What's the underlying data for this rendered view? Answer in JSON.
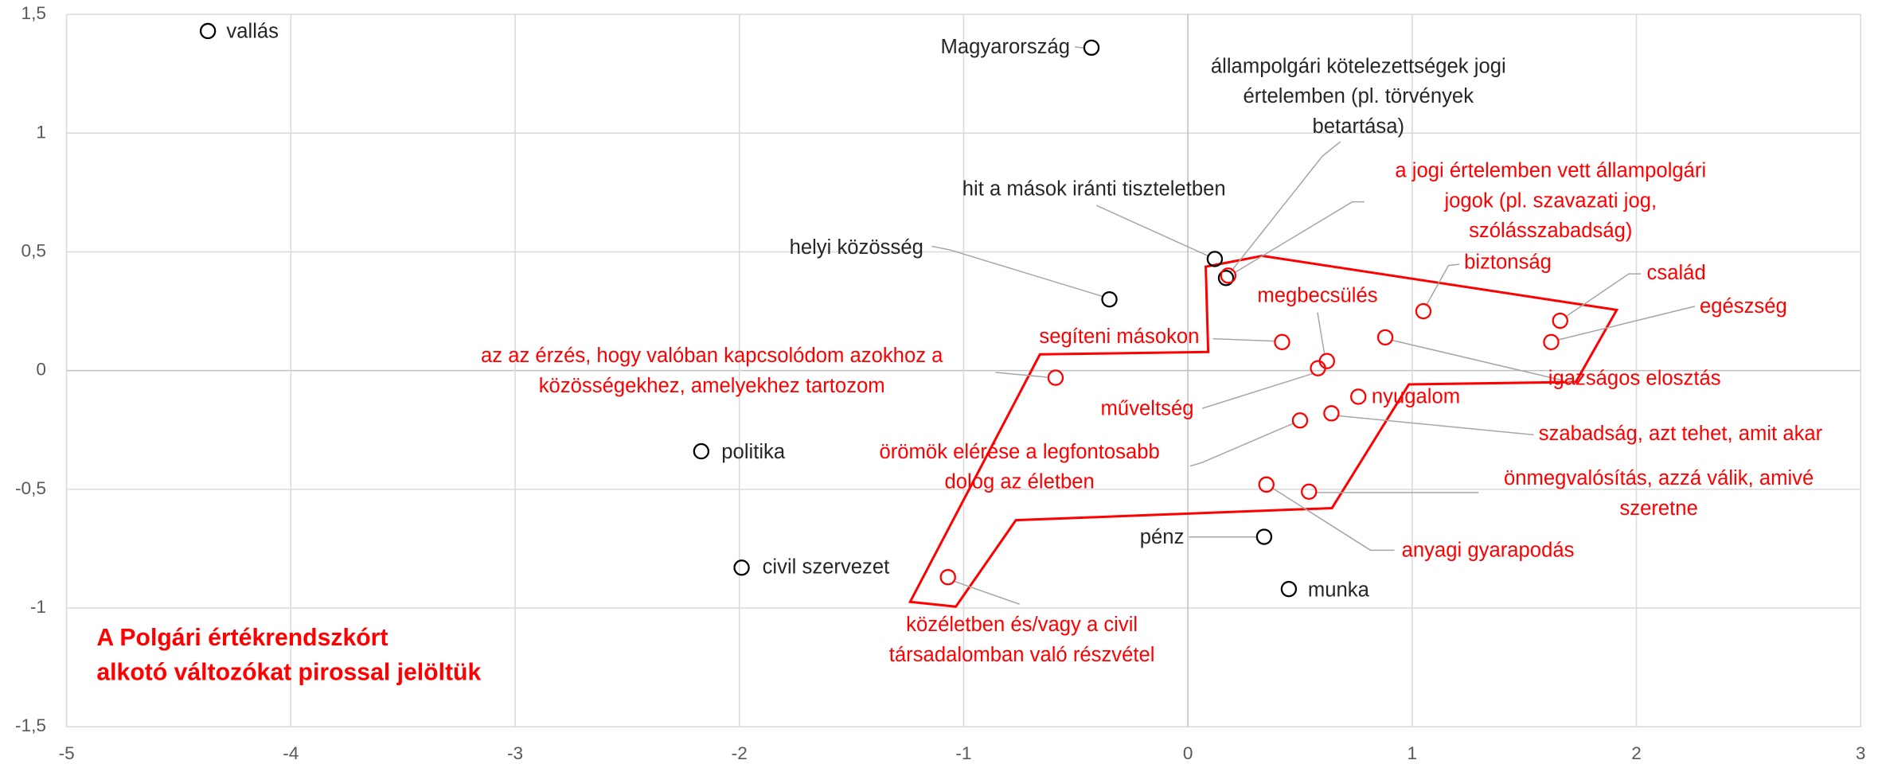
{
  "chart_data": {
    "type": "scatter",
    "xlim": [
      -5,
      3
    ],
    "xticks": [
      -5,
      -4,
      -3,
      -2,
      -1,
      0,
      1,
      2,
      3
    ],
    "ylim": [
      -1.5,
      1.5
    ],
    "yticks": [
      {
        "value": -1.5,
        "label": "-1,5"
      },
      -1,
      {
        "value": -0.5,
        "label": "-0,5"
      },
      0,
      {
        "value": 0.5,
        "label": "0,5"
      },
      1,
      {
        "value": 1.5,
        "label": "1,5"
      }
    ],
    "grid": true,
    "annotation": [
      "A Polgári értékrendszkórt",
      "alkotó változókat pirossal jelöltük"
    ],
    "annotation_color": "#ff0000",
    "points": [
      {
        "label": [
          "vallás"
        ],
        "x": -4.37,
        "y": 1.43,
        "color": "#000000"
      },
      {
        "label": [
          "Magyarország"
        ],
        "x": -0.43,
        "y": 1.36,
        "color": "#000000"
      },
      {
        "label": [
          "hit a mások iránti tiszteletben"
        ],
        "x": 0.12,
        "y": 0.47,
        "color": "#000000"
      },
      {
        "label": [
          "állampolgári kötelezettségek jogi",
          "értelemben (pl. törvények",
          "betartása)"
        ],
        "x": 0.17,
        "y": 0.39,
        "color": "#000000"
      },
      {
        "label": [
          "helyi közösség"
        ],
        "x": -0.35,
        "y": 0.3,
        "color": "#000000"
      },
      {
        "label": [
          "politika"
        ],
        "x": -2.17,
        "y": -0.34,
        "color": "#000000"
      },
      {
        "label": [
          "civil szervezet"
        ],
        "x": -1.99,
        "y": -0.83,
        "color": "#000000"
      },
      {
        "label": [
          "pénz"
        ],
        "x": 0.34,
        "y": -0.7,
        "color": "#000000"
      },
      {
        "label": [
          "munka"
        ],
        "x": 0.45,
        "y": -0.92,
        "color": "#000000"
      },
      {
        "label": [
          "a jogi értelemben vett állampolgári",
          "jogok (pl. szavazati jog,",
          "szólásszabadság)"
        ],
        "x": 0.18,
        "y": 0.4,
        "color": "#ff0000"
      },
      {
        "label": [
          "biztonság"
        ],
        "x": 1.05,
        "y": 0.25,
        "color": "#ff0000"
      },
      {
        "label": [
          "család"
        ],
        "x": 1.66,
        "y": 0.21,
        "color": "#ff0000"
      },
      {
        "label": [
          "egészség"
        ],
        "x": 1.62,
        "y": 0.12,
        "color": "#ff0000"
      },
      {
        "label": [
          "segíteni másokon"
        ],
        "x": 0.42,
        "y": 0.12,
        "color": "#ff0000"
      },
      {
        "label": [
          "megbecsülés"
        ],
        "x": 0.62,
        "y": 0.04,
        "color": "#ff0000"
      },
      {
        "label": [
          "igazságos elosztás"
        ],
        "x": 0.88,
        "y": 0.14,
        "color": "#ff0000"
      },
      {
        "label": [
          "az az érzés, hogy valóban kapcsolódom azokhoz a",
          "közösségekhez, amelyekhez tartozom"
        ],
        "x": -0.59,
        "y": -0.03,
        "color": "#ff0000"
      },
      {
        "label": [
          "műveltség"
        ],
        "x": 0.58,
        "y": 0.01,
        "color": "#ff0000"
      },
      {
        "label": [
          "nyugalom"
        ],
        "x": 0.76,
        "y": -0.11,
        "color": "#ff0000"
      },
      {
        "label": [
          "szabadság, azt tehet, amit akar"
        ],
        "x": 0.64,
        "y": -0.18,
        "color": "#ff0000"
      },
      {
        "label": [
          "örömök elérése a legfontosabb",
          "dolog az életben"
        ],
        "x": 0.5,
        "y": -0.21,
        "color": "#ff0000"
      },
      {
        "label": [
          "önmegvalósítás, azzá válik, amivé",
          "szeretne"
        ],
        "x": 0.54,
        "y": -0.51,
        "color": "#ff0000"
      },
      {
        "label": [
          "anyagi gyarapodás"
        ],
        "x": 0.35,
        "y": -0.48,
        "color": "#ff0000"
      },
      {
        "label": [
          "közéletben és/vagy a civil",
          "társadalomban való részvétel"
        ],
        "x": -1.07,
        "y": -0.87,
        "color": "#ff0000"
      }
    ]
  }
}
